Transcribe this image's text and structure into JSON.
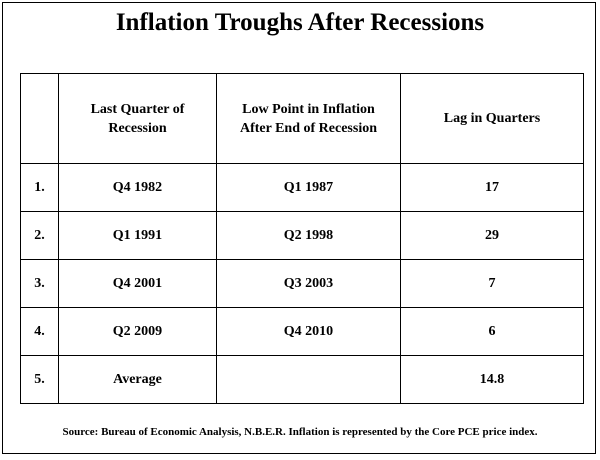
{
  "title": "Inflation Troughs After Recessions",
  "table": {
    "headers": {
      "index": "",
      "last_quarter_line1": "Last Quarter of",
      "last_quarter_line2": "Recession",
      "low_point_line1": "Low Point in Inflation",
      "low_point_line2": "After End of Recession",
      "lag": "Lag in Quarters"
    },
    "rows": [
      {
        "index": "1.",
        "last_quarter": "Q4 1982",
        "low_point": "Q1 1987",
        "lag": "17"
      },
      {
        "index": "2.",
        "last_quarter": "Q1 1991",
        "low_point": "Q2 1998",
        "lag": "29"
      },
      {
        "index": "3.",
        "last_quarter": "Q4 2001",
        "low_point": "Q3 2003",
        "lag": "7"
      },
      {
        "index": "4.",
        "last_quarter": "Q2 2009",
        "low_point": "Q4 2010",
        "lag": "6"
      }
    ],
    "average": {
      "index": "5.",
      "label": "Average",
      "low_point": "",
      "lag": "14.8"
    }
  },
  "source": "Source: Bureau of Economic Analysis, N.B.E.R.  Inflation is represented by the Core PCE price index."
}
